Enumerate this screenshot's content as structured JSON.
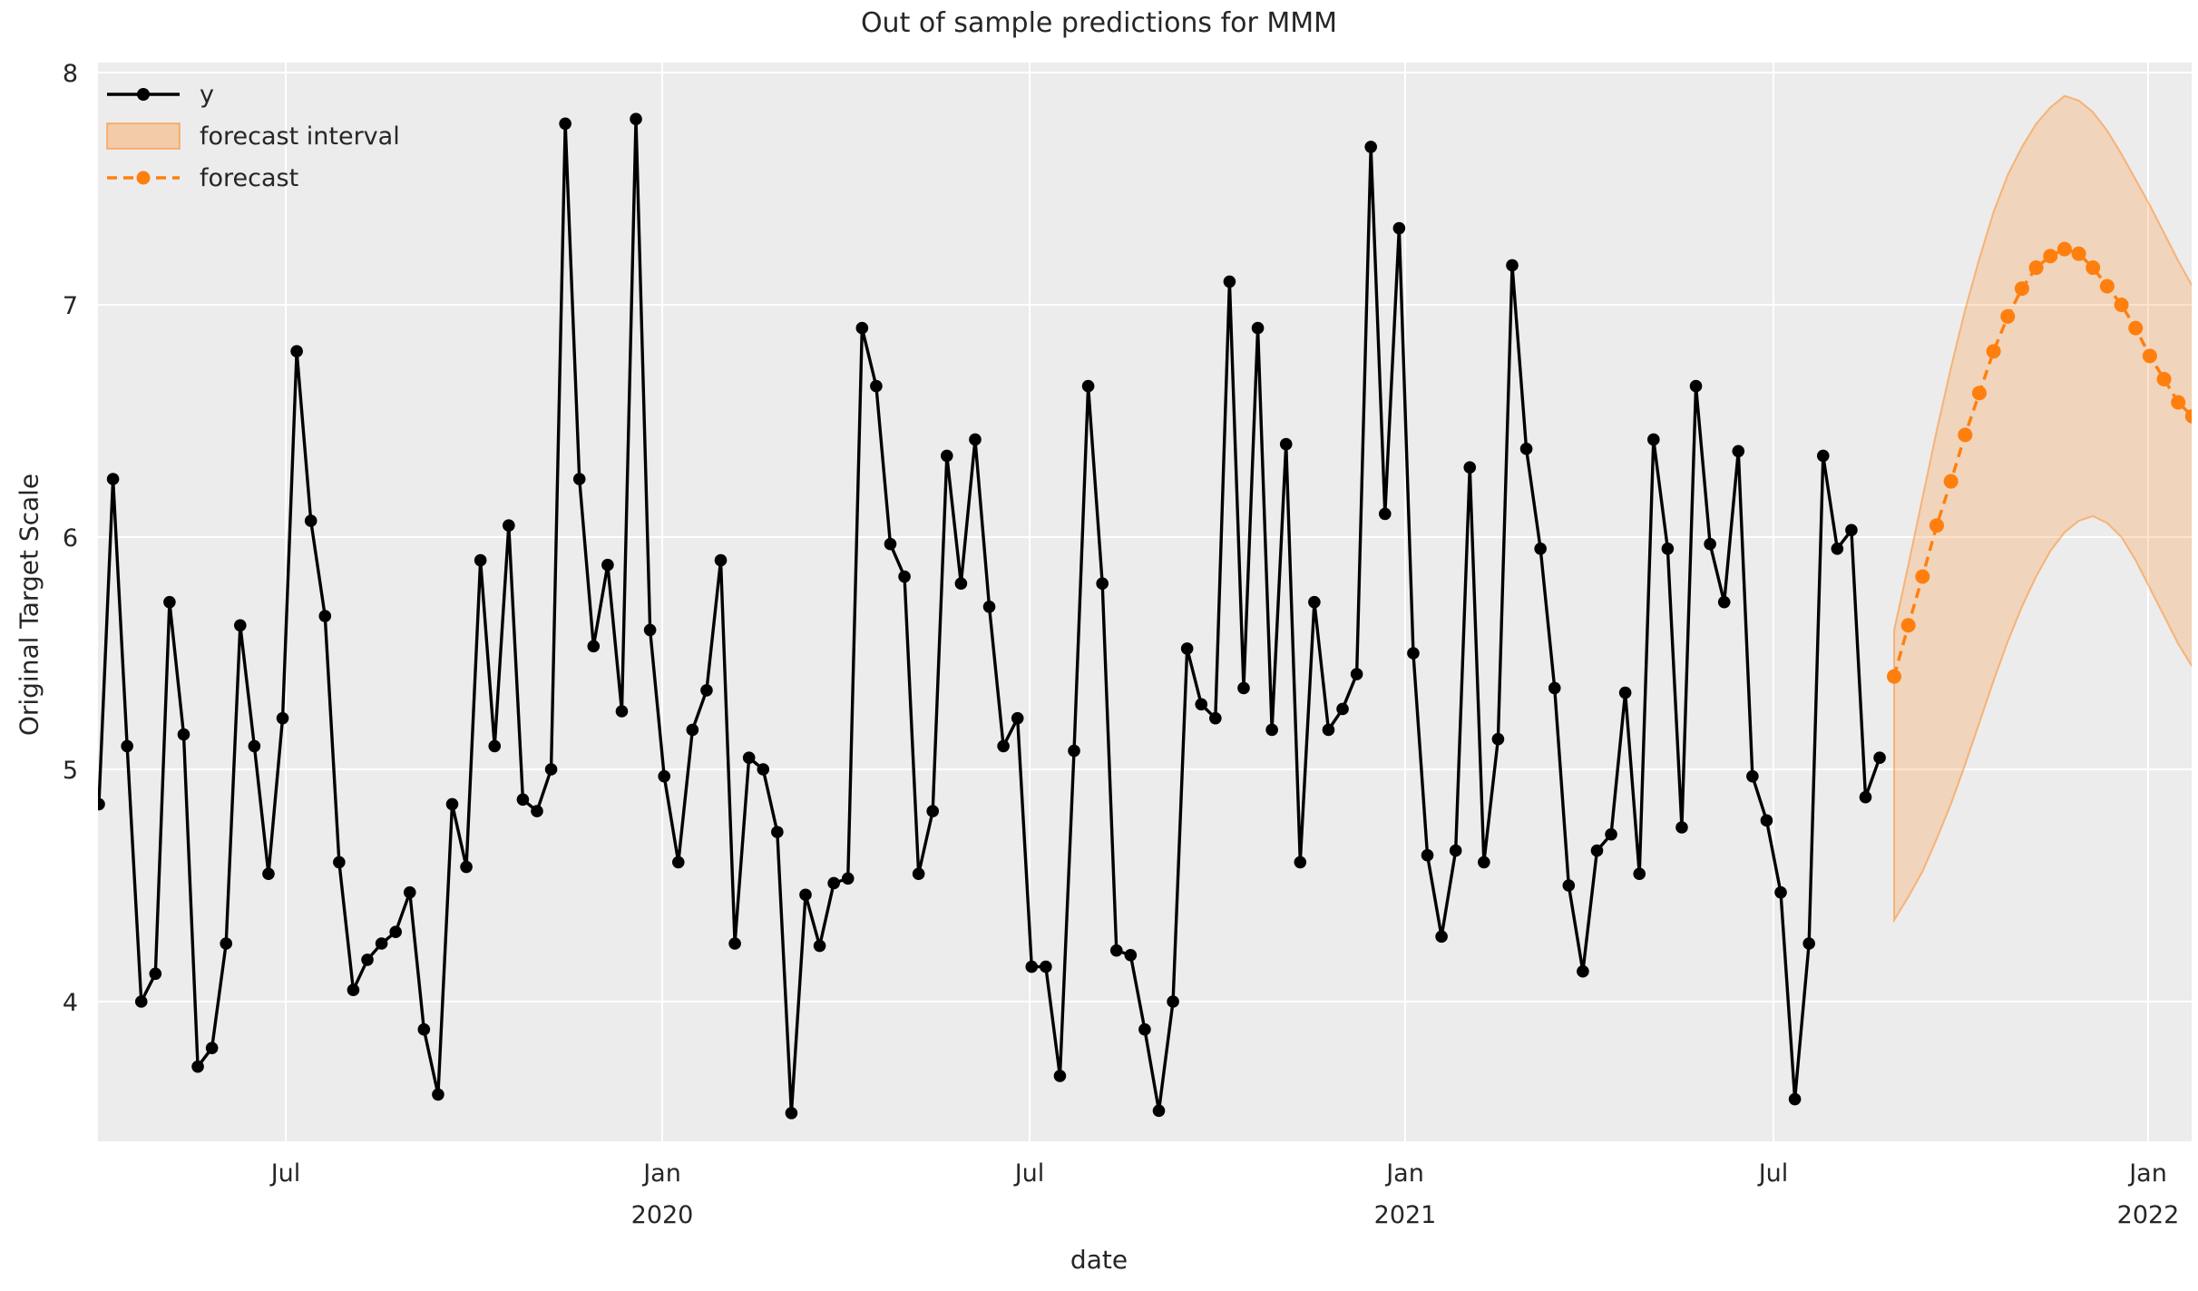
{
  "page": {
    "title": "Out of sample predictions for MMM",
    "xlabel": "date",
    "ylabel": "Original Target Scale"
  },
  "legend": {
    "items": [
      {
        "label": "y",
        "swatch": "black-line-marker"
      },
      {
        "label": "forecast interval",
        "swatch": "orange-filled-patch"
      },
      {
        "label": "forecast",
        "swatch": "orange-dashed-line-marker"
      }
    ]
  },
  "colors": {
    "axes_background": "#ECECEC",
    "gridline": "#FFFFFF",
    "observed_series": "#000000",
    "forecast_series": "#FF7F0E",
    "forecast_band_fill": "rgba(255,127,14,0.22)",
    "forecast_band_edge": "rgba(255,127,14,0.45)",
    "text": "#262626"
  },
  "chart_data": {
    "type": "line",
    "title": "Out of sample predictions for MMM",
    "xlabel": "date",
    "ylabel": "Original Target Scale",
    "ylim": [
      3.4,
      8.05
    ],
    "grid": true,
    "legend_position": "upper left",
    "y_ticks": [
      8,
      7,
      6,
      5,
      4
    ],
    "x_ticks": [
      {
        "label": "Jul",
        "year": ""
      },
      {
        "label": "Jan",
        "year": "2020"
      },
      {
        "label": "Jul",
        "year": ""
      },
      {
        "label": "Jan",
        "year": "2021"
      },
      {
        "label": "Jul",
        "year": ""
      },
      {
        "label": "Jan",
        "year": "2022"
      }
    ],
    "x_axis": {
      "cadence": "weekly",
      "observed_start_approx": "2019-03-25",
      "forecast_start_approx": "2021-08-30",
      "step_days": 7
    },
    "series": [
      {
        "name": "y",
        "style": "solid_line_with_markers",
        "color": "#000000",
        "values": [
          4.85,
          6.25,
          5.1,
          4.0,
          4.12,
          5.72,
          5.15,
          3.72,
          3.8,
          4.25,
          5.62,
          5.1,
          4.55,
          5.22,
          6.8,
          6.07,
          5.66,
          4.6,
          4.05,
          4.18,
          4.25,
          4.3,
          4.47,
          3.88,
          3.6,
          4.85,
          4.58,
          5.9,
          5.1,
          6.05,
          4.87,
          4.82,
          5.0,
          7.78,
          6.25,
          5.53,
          5.88,
          5.25,
          7.8,
          5.6,
          4.97,
          4.6,
          5.17,
          5.34,
          5.9,
          4.25,
          5.05,
          5.0,
          4.73,
          3.52,
          4.46,
          4.24,
          4.51,
          4.53,
          6.9,
          6.65,
          5.97,
          5.83,
          4.55,
          4.82,
          6.35,
          5.8,
          6.42,
          5.7,
          5.1,
          5.22,
          4.15,
          4.15,
          3.68,
          5.08,
          6.65,
          5.8,
          4.22,
          4.2,
          3.88,
          3.53,
          4.0,
          5.52,
          5.28,
          5.22,
          7.1,
          5.35,
          6.9,
          5.17,
          6.4,
          4.6,
          5.72,
          5.17,
          5.26,
          5.41,
          7.68,
          6.1,
          7.33,
          5.5,
          4.63,
          4.28,
          4.65,
          6.3,
          4.6,
          5.13,
          7.17,
          6.38,
          5.95,
          5.35,
          4.5,
          4.13,
          4.65,
          4.72,
          5.33,
          4.55,
          6.42,
          5.95,
          4.75,
          6.65,
          5.97,
          5.72,
          6.37,
          4.97,
          4.78,
          4.47,
          3.58,
          4.25,
          6.35,
          5.95,
          6.03,
          4.88,
          5.05
        ]
      },
      {
        "name": "forecast",
        "style": "dashed_line_with_markers",
        "color": "#FF7F0E",
        "values": [
          5.4,
          5.62,
          5.83,
          6.05,
          6.24,
          6.44,
          6.62,
          6.8,
          6.95,
          7.07,
          7.16,
          7.21,
          7.24,
          7.22,
          7.16,
          7.08,
          7.0,
          6.9,
          6.78,
          6.68,
          6.58,
          6.52
        ]
      },
      {
        "name": "forecast interval",
        "style": "filled_band",
        "color": "#FF7F0E",
        "upper": [
          5.6,
          5.88,
          6.17,
          6.46,
          6.73,
          6.98,
          7.2,
          7.4,
          7.56,
          7.68,
          7.78,
          7.85,
          7.9,
          7.88,
          7.83,
          7.75,
          7.65,
          7.54,
          7.43,
          7.31,
          7.19,
          7.08
        ],
        "lower": [
          4.35,
          4.45,
          4.56,
          4.7,
          4.85,
          5.02,
          5.2,
          5.38,
          5.55,
          5.7,
          5.83,
          5.94,
          6.02,
          6.07,
          6.09,
          6.06,
          6.0,
          5.9,
          5.78,
          5.66,
          5.54,
          5.44
        ]
      }
    ]
  }
}
